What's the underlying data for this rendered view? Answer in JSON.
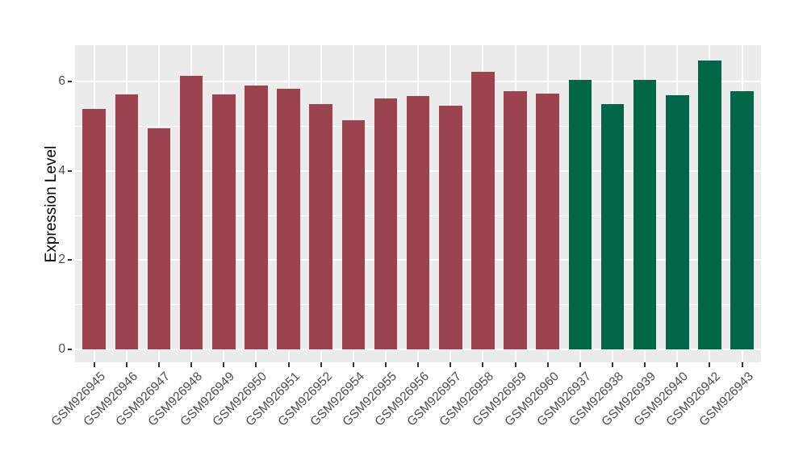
{
  "figure": {
    "background": "#FFFFFF",
    "panel_background": "#EBEBEB",
    "gridline_color": "#FFFFFF",
    "tick_mark_color": "#333333",
    "axis_text_color": "#4D4D4D",
    "axis_title_color": "#000000"
  },
  "chart_data": {
    "type": "bar",
    "title": "",
    "xlabel": "",
    "ylabel": "Expression Level",
    "ylim": [
      0,
      6.8
    ],
    "yticks": [
      0,
      2,
      4,
      6
    ],
    "yticks_minor": [
      1,
      3,
      5
    ],
    "grid": true,
    "legend": "none",
    "group_colors": [
      "#9B4450",
      "#006647"
    ],
    "bars": [
      {
        "label": "GSM926945",
        "value": 5.38,
        "color": "#9B4450"
      },
      {
        "label": "GSM926946",
        "value": 5.7,
        "color": "#9B4450"
      },
      {
        "label": "GSM926947",
        "value": 4.95,
        "color": "#9B4450"
      },
      {
        "label": "GSM926948",
        "value": 6.13,
        "color": "#9B4450"
      },
      {
        "label": "GSM926949",
        "value": 5.7,
        "color": "#9B4450"
      },
      {
        "label": "GSM926950",
        "value": 5.91,
        "color": "#9B4450"
      },
      {
        "label": "GSM926951",
        "value": 5.83,
        "color": "#9B4450"
      },
      {
        "label": "GSM926952",
        "value": 5.49,
        "color": "#9B4450"
      },
      {
        "label": "GSM926954",
        "value": 5.13,
        "color": "#9B4450"
      },
      {
        "label": "GSM926955",
        "value": 5.61,
        "color": "#9B4450"
      },
      {
        "label": "GSM926956",
        "value": 5.67,
        "color": "#9B4450"
      },
      {
        "label": "GSM926957",
        "value": 5.46,
        "color": "#9B4450"
      },
      {
        "label": "GSM926958",
        "value": 6.22,
        "color": "#9B4450"
      },
      {
        "label": "GSM926959",
        "value": 5.77,
        "color": "#9B4450"
      },
      {
        "label": "GSM926960",
        "value": 5.72,
        "color": "#9B4450"
      },
      {
        "label": "GSM926937",
        "value": 6.04,
        "color": "#006647"
      },
      {
        "label": "GSM926938",
        "value": 5.49,
        "color": "#006647"
      },
      {
        "label": "GSM926939",
        "value": 6.04,
        "color": "#006647"
      },
      {
        "label": "GSM926940",
        "value": 5.69,
        "color": "#006647"
      },
      {
        "label": "GSM926942",
        "value": 6.46,
        "color": "#006647"
      },
      {
        "label": "GSM926943",
        "value": 5.77,
        "color": "#006647"
      }
    ]
  }
}
